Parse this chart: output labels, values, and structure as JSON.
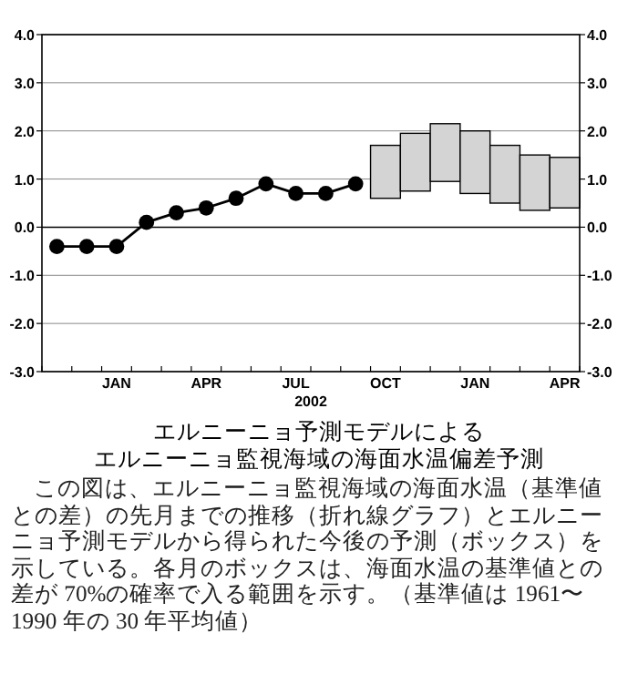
{
  "chart_data": {
    "type": "line",
    "title": "エルニーニョ予測モデルによる",
    "subtitle": "エルニーニョ監視海域の海面水温偏差予測",
    "xlabel": "2002",
    "categories": [
      null,
      null,
      "JAN",
      null,
      null,
      "APR",
      null,
      null,
      "JUL",
      null,
      null,
      "OCT",
      null,
      null,
      "JAN",
      null,
      null,
      "APR"
    ],
    "series": [
      {
        "color": "#000000",
        "values": [
          -0.4,
          -0.4,
          -0.4,
          0.1,
          0.3,
          0.4,
          0.6,
          0.9,
          0.7,
          0.7,
          0.9,
          null,
          null,
          null,
          null,
          null,
          null,
          null
        ]
      },
      {
        "type": "bar",
        "color": "#d4d4d4",
        "values": [
          null,
          null,
          null,
          null,
          null,
          null,
          null,
          null,
          null,
          null,
          null,
          1.1,
          1.2,
          1.2,
          1.3,
          1.2,
          1.15,
          1.05
        ],
        "base": [
          null,
          null,
          null,
          null,
          null,
          null,
          null,
          null,
          null,
          null,
          null,
          0.6,
          0.75,
          0.95,
          0.7,
          0.5,
          0.35,
          0.4
        ]
      }
    ],
    "ylim": [
      -3,
      4
    ],
    "yticks": [
      {
        "value": -3,
        "label": "-3.0"
      },
      {
        "value": -2,
        "label": "-2.0"
      },
      {
        "value": -1,
        "label": "-1.0"
      },
      {
        "value": 0,
        "label": "0.0"
      },
      {
        "value": 1,
        "label": "1.0"
      },
      {
        "value": 2,
        "label": "2.0"
      },
      {
        "value": 3,
        "label": "3.0"
      },
      {
        "value": 4,
        "label": "4.0"
      }
    ],
    "y2lim": [
      -3,
      4
    ],
    "y2ticks": [
      {
        "value": -3,
        "label": "-3.0"
      },
      {
        "value": -2,
        "label": "-2.0"
      },
      {
        "value": -1,
        "label": "-1.0"
      },
      {
        "value": 0,
        "label": "0.0"
      },
      {
        "value": 1,
        "label": "1.0"
      },
      {
        "value": 2,
        "label": "2.0"
      },
      {
        "value": 3,
        "label": "3.0"
      },
      {
        "value": 4,
        "label": "4.0"
      }
    ],
    "grid": "y",
    "marker": "circle",
    "line_style": "solid",
    "annotations": [
      "この図は、エルニーニョ監視海域の海面水温（基準値との差）の先月までの推移（折れ線グラフ）とエルニーニョ予測モデルから得られた今後の予測（ボックス）を示している。各月のボックスは、海面水温の基準値との差が 70%の確率で入る範囲を示す。（基準値は 1961〜1990 年の 30 年平均値）"
    ]
  }
}
